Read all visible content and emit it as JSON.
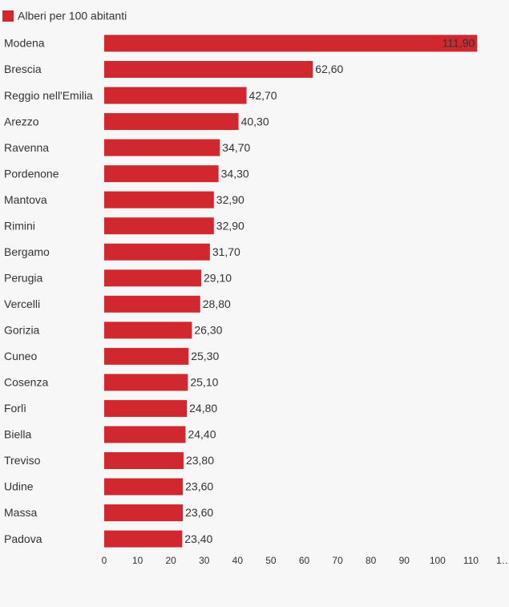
{
  "chart_data": {
    "type": "bar",
    "orientation": "horizontal",
    "legend": "Alberi per 100 abitanti",
    "legend_position": "top-left",
    "color": "#d1282f",
    "categories": [
      "Modena",
      "Brescia",
      "Reggio nell'Emilia",
      "Arezzo",
      "Ravenna",
      "Pordenone",
      "Mantova",
      "Rimini",
      "Bergamo",
      "Perugia",
      "Vercelli",
      "Gorizia",
      "Cuneo",
      "Cosenza",
      "Forlì",
      "Biella",
      "Treviso",
      "Udine",
      "Massa",
      "Padova"
    ],
    "values": [
      111.9,
      62.6,
      42.7,
      40.3,
      34.7,
      34.3,
      32.9,
      32.9,
      31.7,
      29.1,
      28.8,
      26.3,
      25.3,
      25.1,
      24.8,
      24.4,
      23.8,
      23.6,
      23.6,
      23.4
    ],
    "value_labels": [
      "111,90",
      "62,60",
      "42,70",
      "40,30",
      "34,70",
      "34,30",
      "32,90",
      "32,90",
      "31,70",
      "29,10",
      "28,80",
      "26,30",
      "25,30",
      "25,10",
      "24,80",
      "24,40",
      "23,80",
      "23,60",
      "23,60",
      "23,40"
    ],
    "xlim": [
      0,
      120
    ],
    "xticks": [
      0,
      10,
      20,
      30,
      40,
      50,
      60,
      70,
      80,
      90,
      100,
      110,
      {
        "value": 120,
        "label": "1…"
      }
    ]
  }
}
